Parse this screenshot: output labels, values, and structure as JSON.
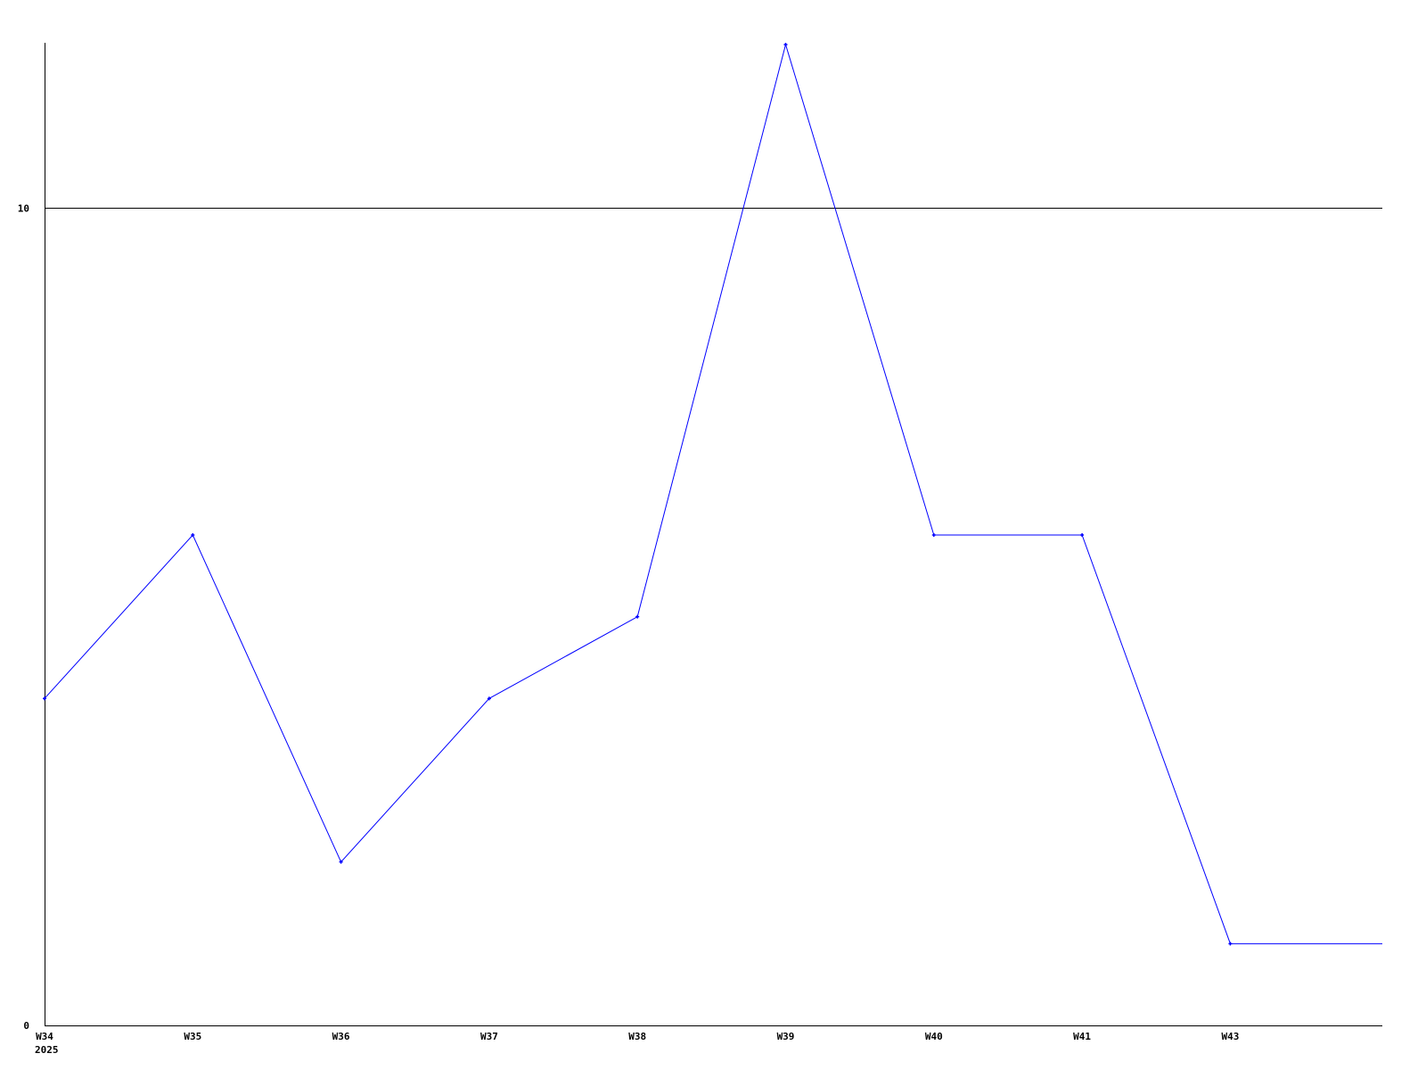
{
  "chart_data": {
    "type": "line",
    "title": "",
    "xlabel": "",
    "ylabel": "",
    "x_tick_labels": [
      "W34",
      "W35",
      "W36",
      "W37",
      "W38",
      "W39",
      "W40",
      "W41",
      "W43"
    ],
    "x_year_label": "2025",
    "y_tick_labels": [
      "0",
      "10"
    ],
    "ylim": [
      0,
      12
    ],
    "reference_line": 10,
    "grid": false,
    "series": [
      {
        "color": "#0000ff",
        "values": [
          4,
          6,
          2,
          4,
          5,
          12,
          6,
          6,
          1
        ],
        "extends_right_at_last_value": true
      }
    ]
  }
}
